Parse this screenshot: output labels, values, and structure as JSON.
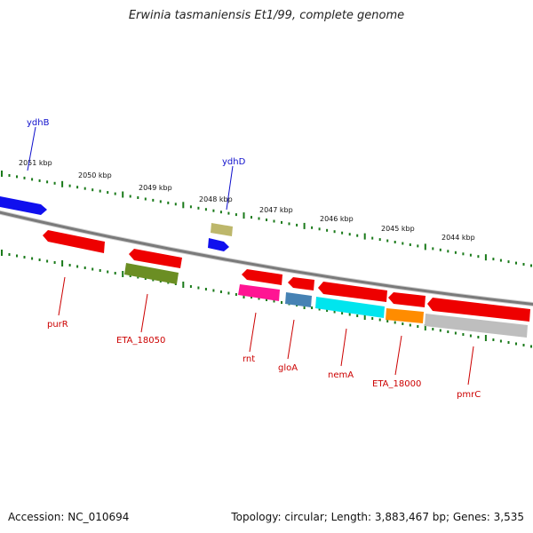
{
  "title": "Erwinia tasmaniensis Et1/99, complete genome",
  "footer": {
    "accession": "Accession: NC_010694",
    "topology": "Topology: circular; Length: 3,883,467 bp; Genes: 3,535"
  },
  "kbp_labels": [
    "2051 kbp",
    "2050 kbp",
    "2049 kbp",
    "2048 kbp",
    "2047 kbp",
    "2046 kbp",
    "2045 kbp",
    "2044 kbp"
  ],
  "genes": [
    {
      "name": "ydhB",
      "strand": "forward",
      "color": "#1010ee",
      "label_color": "#1010cc"
    },
    {
      "name": "ydhD",
      "strand": "forward",
      "color": "#1010ee",
      "label_color": "#1010cc"
    },
    {
      "name": "purR",
      "strand": "reverse",
      "color": "#ee0000",
      "label_color": "#cc0000"
    },
    {
      "name": "ETA_18050",
      "strand": "reverse",
      "color": "#ee0000",
      "label_color": "#cc0000"
    },
    {
      "name": "rnt",
      "strand": "reverse",
      "color": "#ee0000",
      "label_color": "#cc0000"
    },
    {
      "name": "gloA",
      "strand": "reverse",
      "color": "#ee0000",
      "label_color": "#cc0000"
    },
    {
      "name": "nemA",
      "strand": "reverse",
      "color": "#ee0000",
      "label_color": "#cc0000"
    },
    {
      "name": "ETA_18000",
      "strand": "reverse",
      "color": "#ee0000",
      "label_color": "#cc0000"
    },
    {
      "name": "pmrC",
      "strand": "reverse",
      "color": "#ee0000",
      "label_color": "#cc0000"
    }
  ],
  "colors": {
    "backbone": "#7a7a7a",
    "tick": "#1a7a1a",
    "forward_gene": "#1010ee",
    "reverse_gene": "#ee0000",
    "cog_olive": "#6b8e23",
    "cog_khaki": "#bdb76b",
    "cog_magenta": "#ff1493",
    "cog_steelblue": "#4682b4",
    "cog_cyan": "#00e5ee",
    "cog_orange": "#ff8c00",
    "cog_grey": "#bebebe"
  }
}
